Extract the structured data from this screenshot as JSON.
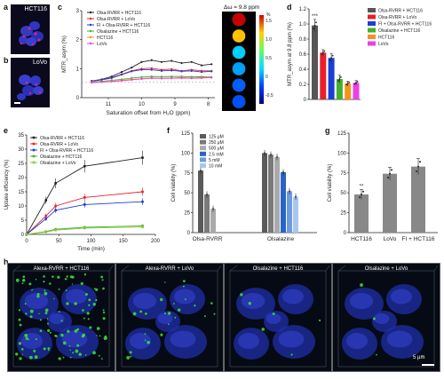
{
  "panels": {
    "a": {
      "letter": "a",
      "cell_line": "HCT116"
    },
    "b": {
      "letter": "b",
      "cell_line": "LoVo"
    },
    "c": {
      "letter": "c",
      "colorbar_label": "Δω = 9.8 ppm",
      "colorbar_unit": "%",
      "colorbar_ticks": [
        "1.5",
        "1.0",
        "0.5",
        "0",
        "-0.5"
      ]
    },
    "d": {
      "letter": "d",
      "significance": "***"
    },
    "e": {
      "letter": "e"
    },
    "f": {
      "letter": "f"
    },
    "g": {
      "letter": "g",
      "significance": "**"
    },
    "h": {
      "letter": "h",
      "scale_text": "5 μm",
      "labels": [
        "Alexa-RVRR + HCT116",
        "Alexa-RVRR + LoVo",
        "Olsalazine + HCT116",
        "Olsalazine + LoVo"
      ]
    }
  },
  "colors": {
    "black": "#222222",
    "red": "#e8202a",
    "blue": "#1a3fd6",
    "green": "#45b02c",
    "orange": "#f7901e",
    "magenta": "#ee3ee6",
    "gray_dark": "#5a5a5a",
    "gray_mid": "#888888"
  },
  "chart_data": [
    {
      "id": "c",
      "type": "line",
      "xlabel": "Saturation offset from H₂O (ppm)",
      "ylabel": "MTR_asym (%)",
      "xlim": [
        11.8,
        7.8
      ],
      "ylim": [
        -0.7,
        3.2
      ],
      "xticks": [
        "11",
        "10",
        "9",
        "8"
      ],
      "yticks": [
        "0",
        "1",
        "2",
        "3"
      ],
      "x": [
        11.5,
        11.2,
        10.9,
        10.6,
        10.3,
        10.0,
        9.7,
        9.4,
        9.1,
        8.8,
        8.5,
        8.2,
        7.9
      ],
      "series": [
        {
          "name": "Olsa-RVRR + HCT116",
          "color": "#222222",
          "values": [
            0.05,
            0.12,
            0.25,
            0.45,
            0.65,
            0.9,
            0.98,
            0.9,
            0.95,
            0.85,
            0.9,
            0.75,
            0.8
          ]
        },
        {
          "name": "Olsa-RVRR + LoVo",
          "color": "#e8202a",
          "values": [
            0.05,
            0.1,
            0.2,
            0.35,
            0.5,
            0.6,
            0.62,
            0.55,
            0.58,
            0.5,
            0.55,
            0.5,
            0.5
          ]
        },
        {
          "name": "FI + Olsa-RVRR + HCT116",
          "color": "#1a3fd6",
          "values": [
            0.04,
            0.1,
            0.18,
            0.33,
            0.48,
            0.55,
            0.55,
            0.5,
            0.52,
            0.48,
            0.5,
            0.45,
            0.48
          ]
        },
        {
          "name": "Olsalazine + HCT116",
          "color": "#45b02c",
          "values": [
            0.0,
            0.03,
            0.08,
            0.12,
            0.18,
            0.22,
            0.25,
            0.24,
            0.25,
            0.25,
            0.23,
            0.24,
            0.22
          ]
        },
        {
          "name": "HCT116",
          "color": "#f7901e",
          "values": [
            -0.02,
            0.0,
            0.03,
            0.08,
            0.12,
            0.15,
            0.18,
            0.17,
            0.18,
            0.2,
            0.18,
            0.2,
            0.2
          ]
        },
        {
          "name": "LoVo",
          "color": "#ee3ee6",
          "values": [
            -0.03,
            0.0,
            0.02,
            0.06,
            0.1,
            0.14,
            0.17,
            0.16,
            0.17,
            0.18,
            0.17,
            0.18,
            0.2
          ]
        }
      ]
    },
    {
      "id": "d",
      "type": "bar",
      "ylabel": "MTR_asym at 9.8 ppm (%)",
      "ylim": [
        0,
        1.2
      ],
      "yticks": [
        "0",
        "0.2",
        "0.4",
        "0.6",
        "0.8",
        "1.0",
        "1.2"
      ],
      "categories": [
        "Olsa-RVRR + HCT116",
        "Olsa-RVRR + LoVo",
        "FI + Olsa-RVRR + HCT116",
        "Olsalazine + HCT116",
        "HCT116",
        "LoVo"
      ],
      "values": [
        0.98,
        0.62,
        0.55,
        0.27,
        0.21,
        0.22
      ],
      "errors": [
        0.08,
        0.04,
        0.06,
        0.05,
        0.03,
        0.03
      ],
      "colors": [
        "#555555",
        "#e8202a",
        "#1a3fd6",
        "#45b02c",
        "#f7901e",
        "#ee3ee6"
      ]
    },
    {
      "id": "e",
      "type": "line",
      "xlabel": "Time (min)",
      "ylabel": "Uptake efficiency (%)",
      "xlim": [
        0,
        200
      ],
      "ylim": [
        0,
        35
      ],
      "xticks": [
        "0",
        "50",
        "100",
        "150",
        "200"
      ],
      "yticks": [
        "0",
        "5",
        "10",
        "15",
        "20",
        "25",
        "30",
        "35"
      ],
      "x": [
        0,
        30,
        45,
        90,
        180
      ],
      "series": [
        {
          "name": "Olsa-RVRR + HCT116",
          "color": "#222222",
          "values": [
            0,
            12,
            18,
            24,
            27
          ]
        },
        {
          "name": "Olsa-RVRR + LoVo",
          "color": "#e8202a",
          "values": [
            0,
            6.5,
            10,
            13,
            15
          ]
        },
        {
          "name": "FI + Olsa-RVRR + HCT116",
          "color": "#1a3fd6",
          "values": [
            0,
            5.5,
            8.5,
            10.5,
            11.5
          ]
        },
        {
          "name": "Olsalazine + HCT116",
          "color": "#45b02c",
          "values": [
            0,
            1,
            1.8,
            2.5,
            3
          ]
        },
        {
          "name": "Olsalazine + LoVo",
          "color": "#8dc63f",
          "values": [
            0,
            0.8,
            1.5,
            2.2,
            2.6
          ]
        }
      ]
    },
    {
      "id": "f",
      "type": "bar",
      "ylabel": "Cell viability (%)",
      "ylim": [
        0,
        125
      ],
      "yticks": [
        "0",
        "25",
        "50",
        "75",
        "100",
        "125"
      ],
      "categories": [
        "Olsa-RVRR",
        "Olsalazine"
      ],
      "series": [
        {
          "name": "125 μM",
          "color": "#5a5a5a",
          "values": [
            78,
            100
          ]
        },
        {
          "name": "250 μM",
          "color": "#7a7a7a",
          "values": [
            48,
            98
          ]
        },
        {
          "name": "500 μM",
          "color": "#aaaaaa",
          "values": [
            30,
            95
          ]
        },
        {
          "name": "2.5 mM",
          "color": "#2b64c8",
          "values": [
            null,
            76
          ]
        },
        {
          "name": "5 mM",
          "color": "#6d9be0",
          "values": [
            null,
            52
          ]
        },
        {
          "name": "10 mM",
          "color": "#a9c6ee",
          "values": [
            null,
            45
          ]
        }
      ]
    },
    {
      "id": "g",
      "type": "bar",
      "ylabel": "Cell viability (%)",
      "ylim": [
        0,
        125
      ],
      "yticks": [
        "0",
        "25",
        "50",
        "75",
        "100",
        "125"
      ],
      "categories": [
        "HCT116",
        "LoVo",
        "FI + HCT116"
      ],
      "values": [
        48,
        74,
        83
      ],
      "errors": [
        6,
        8,
        10
      ],
      "colors": [
        "#888888",
        "#888888",
        "#888888"
      ]
    }
  ]
}
